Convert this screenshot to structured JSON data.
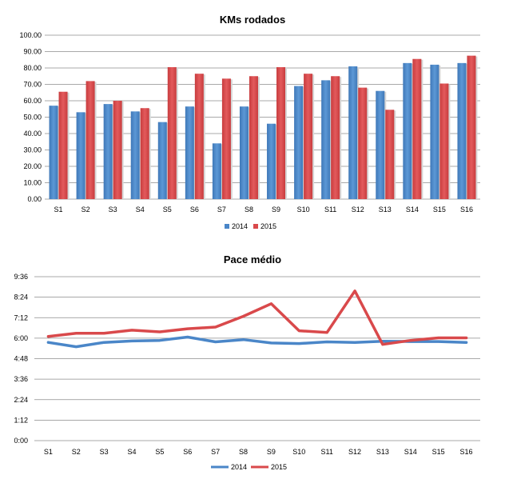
{
  "chart_data": [
    {
      "type": "bar",
      "title": "KMs rodados",
      "xlabel": "",
      "ylabel": "",
      "categories": [
        "S1",
        "S2",
        "S3",
        "S4",
        "S5",
        "S6",
        "S7",
        "S8",
        "S9",
        "S10",
        "S11",
        "S12",
        "S13",
        "S14",
        "S15",
        "S16"
      ],
      "ylim": [
        0,
        100
      ],
      "yticks": [
        "0.00",
        "10.00",
        "20.00",
        "30.00",
        "40.00",
        "50.00",
        "60.00",
        "70.00",
        "80.00",
        "90.00",
        "100.00"
      ],
      "grid": true,
      "legend": "bottom",
      "series": [
        {
          "name": "2014",
          "color": "#4a86c8",
          "values": [
            57,
            53,
            58,
            53.5,
            47,
            56.5,
            34,
            56.5,
            46,
            69,
            72.5,
            81,
            66,
            83,
            82,
            83
          ]
        },
        {
          "name": "2015",
          "color": "#d9494b",
          "values": [
            65.5,
            72,
            60,
            55.5,
            80.5,
            76.5,
            73.5,
            75,
            80.5,
            76.5,
            75,
            68,
            54.5,
            85.5,
            70.5,
            87.5
          ]
        }
      ]
    },
    {
      "type": "line",
      "title": "Pace médio",
      "xlabel": "",
      "ylabel": "",
      "categories": [
        "S1",
        "S2",
        "S3",
        "S4",
        "S5",
        "S6",
        "S7",
        "S8",
        "S9",
        "S10",
        "S11",
        "S12",
        "S13",
        "S14",
        "S15",
        "S16"
      ],
      "ylim": [
        0,
        576
      ],
      "yticks": [
        "0:00",
        "1:12",
        "2:24",
        "3:36",
        "4:48",
        "6:00",
        "7:12",
        "8:24",
        "9:36"
      ],
      "y_unit": "seconds (m:ss)",
      "grid": true,
      "legend": "bottom",
      "series": [
        {
          "name": "2014",
          "color": "#4a86c8",
          "values": [
            345,
            330,
            345,
            350,
            352,
            364,
            347,
            355,
            343,
            341,
            347,
            345,
            349,
            348,
            348,
            345
          ]
        },
        {
          "name": "2015",
          "color": "#d9494b",
          "values": [
            366,
            377,
            377,
            388,
            382,
            393,
            399,
            437,
            481,
            386,
            380,
            526,
            338,
            352,
            361,
            361
          ]
        }
      ]
    }
  ]
}
